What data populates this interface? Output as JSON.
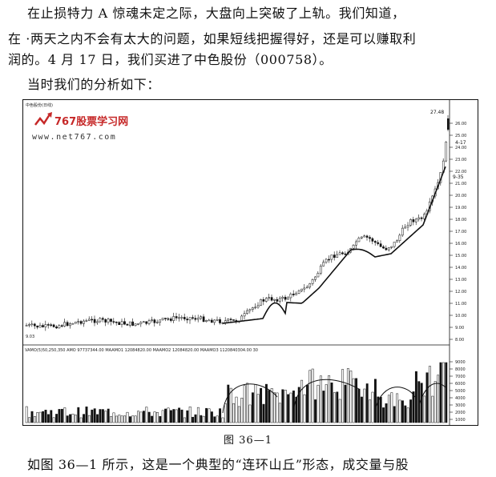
{
  "text": {
    "line1": "在止损特力 A 惊魂未定之际，大盘向上突破了上轨。我们知道，",
    "line2": "在 ·两天之内不会有太大的问题，如果短线把握得好，还是可以赚取利",
    "line3": "润的。4 月 17 日，我们买进了中色股份（000758）。",
    "line4": "当时我们的分析如下：",
    "caption": "图 36—1",
    "line5": "如图 36—1 所示，这是一个典型的“连环山丘”形态，成交量与股"
  },
  "chart_data": {
    "type": "candlestick",
    "title": "中色股份(日线)",
    "watermark": {
      "logo": "767股票学习网",
      "site": "www.net767.com"
    },
    "price_axis": {
      "ticks": [
        "26.00",
        "25.00",
        "24.00",
        "23.00",
        "22.00",
        "21.00",
        "20.00",
        "19.00",
        "18.00",
        "17.00",
        "16.00",
        "15.00",
        "14.00",
        "13.00",
        "12.00",
        "11.00",
        "10.00",
        "9.00",
        "8.00"
      ],
      "top_label": "27.48"
    },
    "annotations": [
      "4-17",
      "9-35",
      "4-17",
      "9.03"
    ],
    "volume_legend": "VAMO(5)50,250,350 AMO 97737344.00 MAAMO1 12084820.00 MAAMO2 12084820.00 MAAMO3 1120840304.00 30",
    "volume_axis": {
      "ticks": [
        "9000",
        "8000",
        "7000",
        "6000",
        "5000",
        "4000",
        "3000",
        "2000",
        "1000"
      ]
    },
    "colors": {
      "up": "#ffffff",
      "down": "#111111",
      "line": "#111111"
    }
  }
}
